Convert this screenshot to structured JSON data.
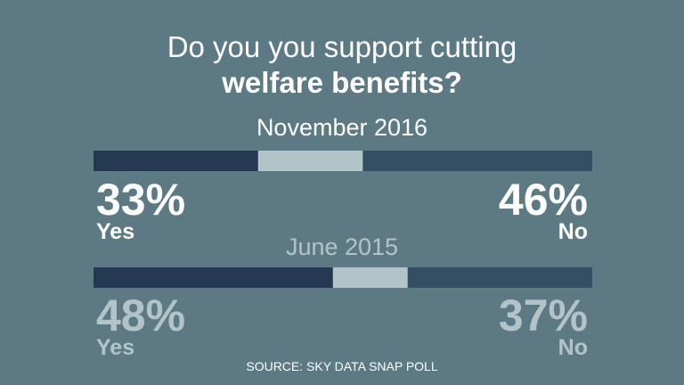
{
  "title": {
    "line1": "Do you you support cutting",
    "line2": "welfare benefits?"
  },
  "colors": {
    "background": "#5d7a84",
    "yes": "#253a52",
    "undecided": "#b3c4c9",
    "no": "#344e63",
    "current_text": "#ffffff",
    "previous_text": "#b3c4c9"
  },
  "chart_data": {
    "type": "bar",
    "orientation": "horizontal-stacked",
    "categories": [
      "November 2016",
      "June 2015"
    ],
    "series": [
      {
        "name": "Yes",
        "values": [
          33,
          48
        ]
      },
      {
        "name": "No",
        "values": [
          46,
          37
        ]
      }
    ],
    "value_labels": {
      "yes": [
        "33%",
        "48%"
      ],
      "no": [
        "46%",
        "37%"
      ]
    },
    "unit": "%"
  },
  "source": "SOURCE: SKY DATA SNAP POLL"
}
